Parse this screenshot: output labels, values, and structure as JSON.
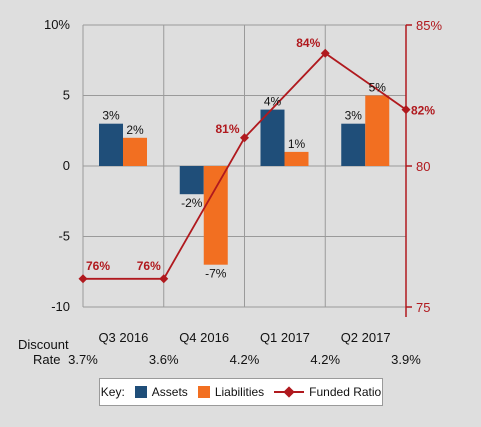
{
  "chart_data": {
    "type": "bar+line",
    "categories": [
      "Q3 2016",
      "Q4 2016",
      "Q1 2017",
      "Q2 2017"
    ],
    "series": [
      {
        "name": "Assets",
        "type": "bar",
        "axis": "left",
        "values": [
          3,
          -2,
          4,
          3
        ],
        "labels": [
          "3%",
          "-2%",
          "4%",
          "3%"
        ],
        "color": "#1f4e79"
      },
      {
        "name": "Liabilities",
        "type": "bar",
        "axis": "left",
        "values": [
          2,
          -7,
          1,
          5
        ],
        "labels": [
          "2%",
          "-7%",
          "1%",
          "5%"
        ],
        "color": "#f26f21"
      },
      {
        "name": "Funded Ratio",
        "type": "line",
        "axis": "right",
        "x": [
          0,
          1,
          2,
          3,
          4
        ],
        "values": [
          76,
          76,
          81,
          84,
          82
        ],
        "labels": [
          "76%",
          "76%",
          "81%",
          "84%",
          "82%"
        ],
        "color": "#b0191e"
      }
    ],
    "left_axis": {
      "ylim": [
        -10,
        10
      ],
      "ticks": [
        10,
        5,
        0,
        -5,
        -10
      ],
      "tick_labels": [
        "10%",
        "5",
        "0",
        "-5",
        "-10"
      ]
    },
    "right_axis": {
      "ylim": [
        75,
        85
      ],
      "ticks": [
        85,
        80,
        75
      ],
      "tick_labels": [
        "85%",
        "80",
        "75"
      ],
      "color": "#b0191e"
    },
    "grid": true,
    "discount_rate": {
      "label_line1": "Discount",
      "label_line2": "Rate",
      "values": [
        "3.7%",
        "3.6%",
        "4.2%",
        "4.2%",
        "3.9%"
      ]
    },
    "legend": {
      "key_label": "Key:",
      "items": [
        "Assets",
        "Liabilities",
        "Funded Ratio"
      ],
      "placement": "bottom"
    }
  },
  "colors": {
    "assets": "#1f4e79",
    "liabilities": "#f26f21",
    "funded_ratio": "#b0191e",
    "background": "#dedede"
  }
}
